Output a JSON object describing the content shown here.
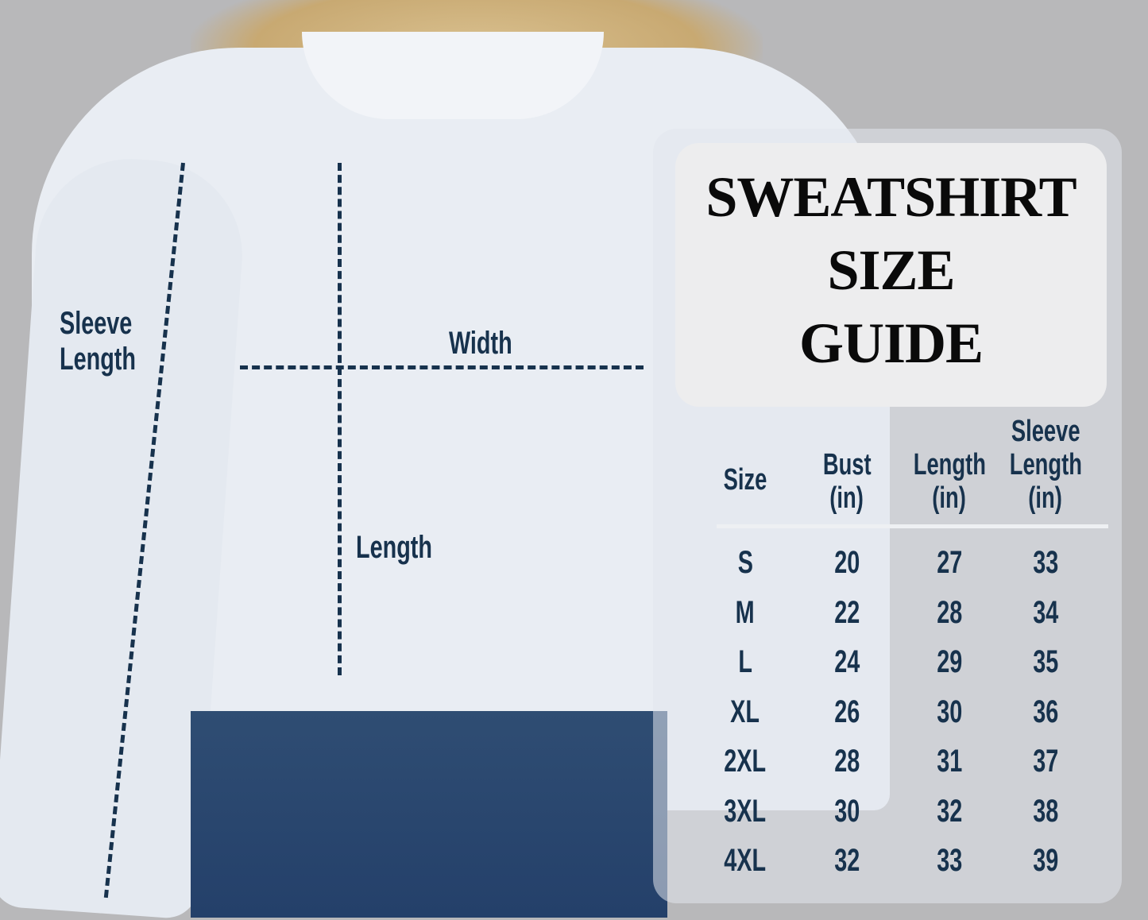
{
  "title": {
    "line1": "SWEATSHIRT",
    "line2": "SIZE",
    "line3": "GUIDE"
  },
  "diagram_labels": {
    "sleeve_line1": "Sleeve",
    "sleeve_line2": "Length",
    "width": "Width",
    "length": "Length"
  },
  "table": {
    "headers": [
      [
        "Size"
      ],
      [
        "Bust",
        "(in)"
      ],
      [
        "Length",
        "(in)"
      ],
      [
        "Sleeve",
        "Length",
        "(in)"
      ]
    ],
    "rows": [
      [
        "S",
        "20",
        "27",
        "33"
      ],
      [
        "M",
        "22",
        "28",
        "34"
      ],
      [
        "L",
        "24",
        "29",
        "35"
      ],
      [
        "XL",
        "26",
        "30",
        "36"
      ],
      [
        "2XL",
        "28",
        "31",
        "37"
      ],
      [
        "3XL",
        "30",
        "32",
        "38"
      ],
      [
        "4XL",
        "32",
        "33",
        "39"
      ]
    ]
  },
  "colors": {
    "text": "#17324d",
    "background": "#b8b8ba"
  }
}
